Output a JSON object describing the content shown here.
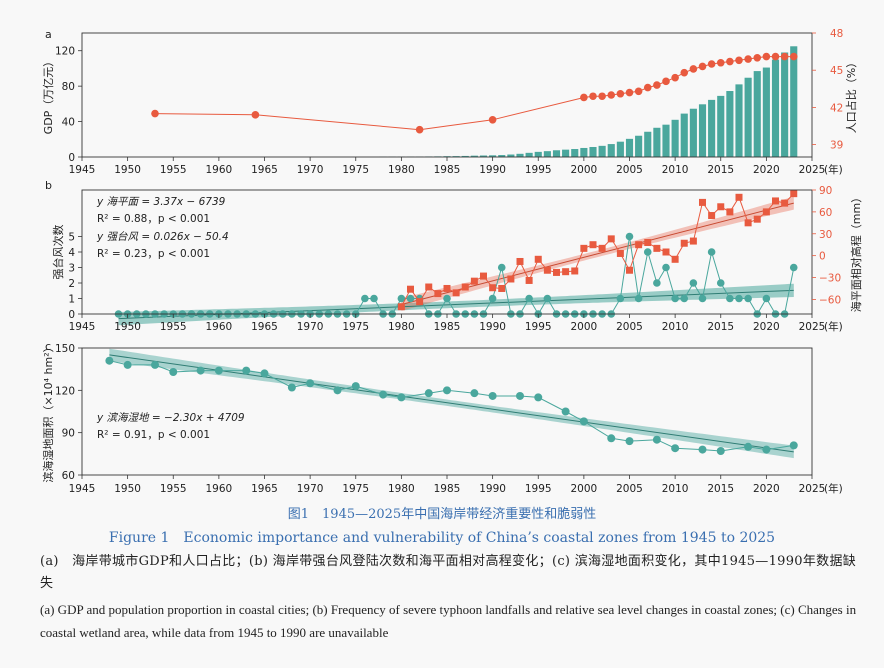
{
  "colors": {
    "teal": "#4aa79d",
    "red": "#e85a3f",
    "axis": "#333333"
  },
  "figure": {
    "caption_title_zh": "图1　1945—2025年中国海岸带经济重要性和脆弱性",
    "caption_title_en": "Figure 1　Economic importance and vulnerability of China’s coastal zones from 1945 to 2025",
    "caption_zh": "(a)　海岸带城市GDP和人口占比；(b) 海岸带强台风登陆次数和海平面相对高程变化；(c) 滨海湿地面积变化，其中1945—1990年数据缺失",
    "caption_en": "(a) GDP and population proportion in coastal cities; (b) Frequency of severe typhoon landfalls and relative sea level changes in coastal zones; (c) Changes in coastal wetland area, while data from 1945 to 1990 are unavailable"
  },
  "chart_data": [
    {
      "panel": "a",
      "type": "bar+line",
      "xlim": [
        1945,
        2025
      ],
      "xticks": [
        "1945",
        "1950",
        "1955",
        "1960",
        "1965",
        "1970",
        "1975",
        "1980",
        "1985",
        "1990",
        "1995",
        "2000",
        "2005",
        "2010",
        "2015",
        "2020",
        "2025"
      ],
      "xunit": "(年)",
      "ylabel_left": "GDP（万亿元）",
      "ylim_left": [
        0,
        140
      ],
      "yticks_left": [
        "0",
        "40",
        "80",
        "120"
      ],
      "ylabel_right": "人口占比（%）",
      "ylim_right": [
        38,
        48
      ],
      "yticks_right": [
        "39",
        "42",
        "45",
        "48"
      ],
      "gdp_series": {
        "name": "GDP",
        "x": [
          1978,
          1979,
          1980,
          1981,
          1982,
          1983,
          1984,
          1985,
          1986,
          1987,
          1988,
          1989,
          1990,
          1991,
          1992,
          1993,
          1994,
          1995,
          1996,
          1997,
          1998,
          1999,
          2000,
          2001,
          2002,
          2003,
          2004,
          2005,
          2006,
          2007,
          2008,
          2009,
          2010,
          2011,
          2012,
          2013,
          2014,
          2015,
          2016,
          2017,
          2018,
          2019,
          2020,
          2021,
          2022,
          2023
        ],
        "values": [
          0.3,
          0.4,
          0.4,
          0.5,
          0.5,
          0.6,
          0.7,
          0.9,
          1.0,
          1.2,
          1.5,
          1.7,
          1.9,
          2.2,
          2.8,
          3.6,
          4.7,
          5.8,
          6.6,
          7.6,
          8.3,
          9.0,
          10.2,
          11.3,
          12.6,
          14.6,
          17.3,
          20.5,
          24.0,
          28.5,
          33.0,
          36.5,
          42.0,
          49.0,
          54.5,
          59.5,
          64.5,
          69.0,
          74.5,
          82.0,
          89.5,
          97.0,
          101.0,
          110.0,
          118.0,
          125.0
        ]
      },
      "population_series": {
        "name": "人口占比",
        "x": [
          1953,
          1964,
          1982,
          1990,
          2000,
          2001,
          2002,
          2003,
          2004,
          2005,
          2006,
          2007,
          2008,
          2009,
          2010,
          2011,
          2012,
          2013,
          2014,
          2015,
          2016,
          2017,
          2018,
          2019,
          2020,
          2021,
          2022,
          2023
        ],
        "values": [
          41.5,
          41.4,
          40.2,
          41.0,
          42.8,
          42.9,
          42.9,
          43.0,
          43.1,
          43.2,
          43.3,
          43.6,
          43.8,
          44.1,
          44.4,
          44.8,
          45.1,
          45.3,
          45.5,
          45.6,
          45.7,
          45.8,
          45.9,
          46.0,
          46.1,
          46.1,
          46.1,
          46.1
        ]
      }
    },
    {
      "panel": "b",
      "type": "line+regression",
      "xlim": [
        1945,
        2025
      ],
      "xticks": [
        "1945",
        "1950",
        "1955",
        "1960",
        "1965",
        "1970",
        "1975",
        "1980",
        "1985",
        "1990",
        "1995",
        "2000",
        "2005",
        "2010",
        "2015",
        "2020",
        "2025"
      ],
      "xunit": "(年)",
      "ylabel_left": "强台风次数",
      "ylim_left": [
        0,
        8
      ],
      "yticks_left": [
        "0",
        "1",
        "2",
        "3",
        "4",
        "5"
      ],
      "ylabel_right": "海平面相对高程（mm）",
      "ylim_right": [
        -80,
        90
      ],
      "yticks_right": [
        "−60",
        "−30",
        "0",
        "30",
        "60",
        "90"
      ],
      "typhoon_series": {
        "name": "强台风登陆次数",
        "x": [
          1949,
          1950,
          1951,
          1952,
          1953,
          1954,
          1955,
          1956,
          1957,
          1958,
          1959,
          1960,
          1961,
          1962,
          1963,
          1964,
          1965,
          1966,
          1967,
          1968,
          1969,
          1970,
          1971,
          1972,
          1973,
          1974,
          1975,
          1976,
          1977,
          1978,
          1979,
          1980,
          1981,
          1982,
          1983,
          1984,
          1985,
          1986,
          1987,
          1988,
          1989,
          1990,
          1991,
          1992,
          1993,
          1994,
          1995,
          1996,
          1997,
          1998,
          1999,
          2000,
          2001,
          2002,
          2003,
          2004,
          2005,
          2006,
          2007,
          2008,
          2009,
          2010,
          2011,
          2012,
          2013,
          2014,
          2015,
          2016,
          2017,
          2018,
          2019,
          2020,
          2021,
          2022,
          2023
        ],
        "values": [
          0,
          0,
          0,
          0,
          0,
          0,
          0,
          0,
          0,
          0,
          0,
          0,
          0,
          0,
          0,
          0,
          0,
          0,
          0,
          0,
          0,
          0,
          0,
          0,
          0,
          0,
          0,
          1,
          1,
          0,
          0,
          1,
          1,
          1,
          0,
          0,
          1,
          0,
          0,
          0,
          0,
          1,
          3,
          0,
          0,
          1,
          0,
          1,
          0,
          0,
          0,
          0,
          0,
          0,
          0,
          1,
          5,
          1,
          4,
          2,
          3,
          1,
          1,
          2,
          1,
          4,
          2,
          1,
          1,
          1,
          0,
          1,
          0,
          0,
          3
        ]
      },
      "sea_level_series": {
        "name": "海平面相对高程",
        "x": [
          1980,
          1981,
          1982,
          1983,
          1984,
          1985,
          1986,
          1987,
          1988,
          1989,
          1990,
          1991,
          1992,
          1993,
          1994,
          1995,
          1996,
          1997,
          1998,
          1999,
          2000,
          2001,
          2002,
          2003,
          2004,
          2005,
          2006,
          2007,
          2008,
          2009,
          2010,
          2011,
          2012,
          2013,
          2014,
          2015,
          2016,
          2017,
          2018,
          2019,
          2020,
          2021,
          2022,
          2023
        ],
        "values": [
          -70,
          -46,
          -63,
          -43,
          -52,
          -45,
          -51,
          -43,
          -35,
          -28,
          -44,
          -45,
          -32,
          -8,
          -34,
          -5,
          -20,
          -23,
          -22,
          -21,
          10,
          15,
          10,
          23,
          3,
          -20,
          15,
          18,
          10,
          5,
          -5,
          17,
          20,
          73,
          55,
          67,
          60,
          80,
          45,
          50,
          60,
          75,
          72,
          85
        ]
      },
      "typhoon_regression": {
        "label": "y 强台风 = 0.026x − 50.4",
        "slope": 0.026,
        "intercept": -50.4,
        "r2_text": "R² = 0.23，p < 0.001"
      },
      "sea_level_regression": {
        "label": "y 海平面 = 3.37x − 6739",
        "slope": 3.37,
        "intercept": -6739,
        "r2_text": "R² = 0.88，p < 0.001"
      }
    },
    {
      "panel": "c",
      "type": "line+regression",
      "xlim": [
        1945,
        2025
      ],
      "xticks": [
        "1945",
        "1950",
        "1955",
        "1960",
        "1965",
        "1970",
        "1975",
        "1980",
        "1985",
        "1990",
        "1995",
        "2000",
        "2005",
        "2010",
        "2015",
        "2020",
        "2025"
      ],
      "xunit": "(年)",
      "ylabel": "滨海湿地面积（×10⁴ hm²）",
      "ylim": [
        60,
        150
      ],
      "yticks": [
        "60",
        "90",
        "120",
        "150"
      ],
      "wetland_series": {
        "name": "滨海湿地面积",
        "x": [
          1948,
          1950,
          1953,
          1955,
          1958,
          1960,
          1963,
          1965,
          1968,
          1970,
          1973,
          1975,
          1978,
          1980,
          1983,
          1985,
          1988,
          1990,
          1993,
          1995,
          1998,
          2000,
          2003,
          2005,
          2008,
          2010,
          2013,
          2015,
          2018,
          2020,
          2023
        ],
        "values": [
          141,
          138,
          138,
          133,
          134,
          134,
          134,
          132,
          122,
          125,
          120,
          123,
          117,
          115,
          118,
          120,
          118,
          116,
          116,
          115,
          105,
          98,
          86,
          84,
          85,
          79,
          78,
          77,
          80,
          78,
          81
        ]
      },
      "wetland_regression": {
        "label": "y 滨海湿地 = −2.30x + 4709",
        "slope": -2.3,
        "intercept": 4709,
        "r2_text": "R² = 0.91，p < 0.001"
      }
    }
  ]
}
